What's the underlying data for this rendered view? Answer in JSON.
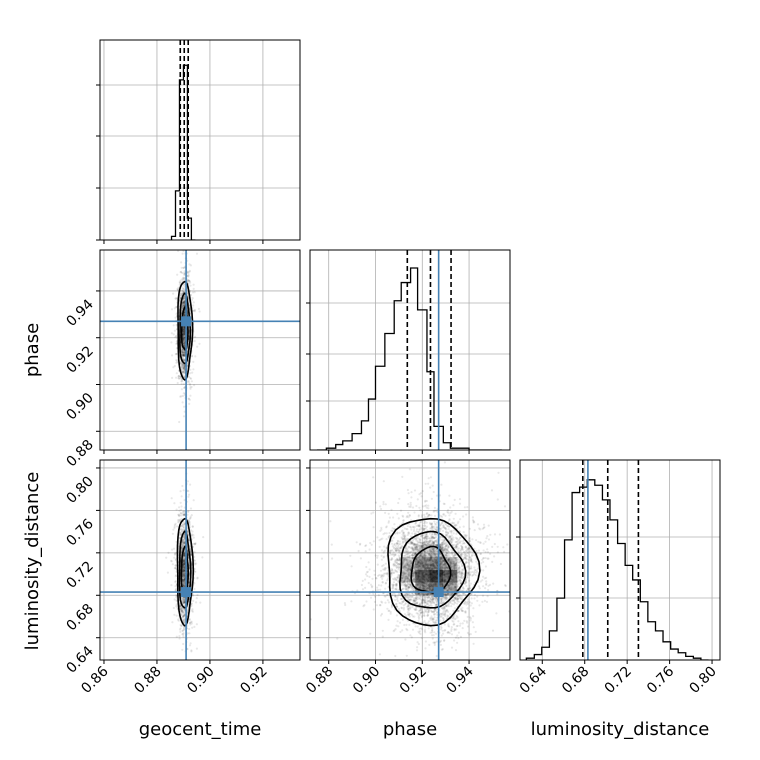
{
  "chart_data": {
    "type": "corner",
    "title": "",
    "grid": true,
    "truth_color": "#4682b4",
    "parameters": [
      "geocent_time",
      "phase",
      "luminosity_distance"
    ],
    "axis_labels": {
      "x_geocent_time": "geocent_time",
      "x_phase": "phase",
      "x_luminosity_distance": "luminosity_distance",
      "y_phase": "phase",
      "y_luminosity_distance": "luminosity_distance"
    },
    "truths": {
      "geocent_time": 0.891,
      "phase": 0.927,
      "luminosity_distance": 0.683
    },
    "ranges": {
      "geocent_time": [
        0.8585,
        0.934
      ],
      "phase": [
        0.872,
        0.9575
      ],
      "luminosity_distance": [
        0.619,
        0.8075
      ]
    },
    "ticks": {
      "geocent_time": [
        "0.86",
        "0.88",
        "0.90",
        "0.92"
      ],
      "phase": [
        "0.88",
        "0.90",
        "0.92",
        "0.94"
      ],
      "luminosity_distance": [
        "0.64",
        "0.68",
        "0.72",
        "0.76",
        "0.80"
      ]
    },
    "tick_values": {
      "geocent_time": [
        0.86,
        0.88,
        0.9,
        0.92
      ],
      "phase": [
        0.88,
        0.9,
        0.92,
        0.94
      ],
      "luminosity_distance": [
        0.64,
        0.68,
        0.72,
        0.76,
        0.8
      ]
    },
    "quantiles": {
      "geocent_time": [
        0.8888,
        0.8903,
        0.8918
      ],
      "phase": [
        0.9136,
        0.9235,
        0.9323
      ],
      "luminosity_distance": [
        0.6782,
        0.7017,
        0.7306
      ]
    },
    "histograms": {
      "geocent_time": {
        "edges": [
          0.8855,
          0.887,
          0.8885,
          0.89,
          0.8915,
          0.893,
          0.8945
        ],
        "counts": [
          0.02,
          0.27,
          0.88,
          0.96,
          0.12,
          0.0
        ]
      },
      "phase": {
        "edges": [
          0.875,
          0.879,
          0.883,
          0.886,
          0.89,
          0.894,
          0.897,
          0.9,
          0.904,
          0.908,
          0.911,
          0.915,
          0.918,
          0.922,
          0.925,
          0.929,
          0.932,
          0.936,
          0.94,
          0.943,
          0.947,
          0.95,
          0.954
        ],
        "counts": [
          0.0,
          0.01,
          0.03,
          0.05,
          0.09,
          0.16,
          0.28,
          0.46,
          0.64,
          0.82,
          0.92,
          1.0,
          0.77,
          0.43,
          0.13,
          0.04,
          0.01,
          0.01,
          0.0,
          0.0,
          0.0,
          0.0
        ]
      },
      "luminosity_distance": {
        "edges": [
          0.625,
          0.6325,
          0.6395,
          0.6467,
          0.6538,
          0.661,
          0.6681,
          0.6752,
          0.6824,
          0.6895,
          0.6967,
          0.7038,
          0.711,
          0.7181,
          0.7252,
          0.7324,
          0.7395,
          0.7467,
          0.7538,
          0.761,
          0.7681,
          0.7752,
          0.7824,
          0.7895,
          0.7967
        ],
        "counts": [
          0.01,
          0.03,
          0.07,
          0.16,
          0.34,
          0.66,
          0.92,
          0.95,
          0.99,
          0.96,
          0.88,
          0.77,
          0.64,
          0.52,
          0.44,
          0.32,
          0.21,
          0.16,
          0.1,
          0.06,
          0.04,
          0.02,
          0.01,
          0.0
        ]
      }
    },
    "posterior_2d": {
      "geocent_time_vs_phase": {
        "mean": [
          0.8905,
          0.9235
        ],
        "std": [
          0.0013,
          0.01
        ]
      },
      "geocent_time_vs_luminosity_distance": {
        "mean": [
          0.8905,
          0.703
        ],
        "std": [
          0.0014,
          0.024
        ]
      },
      "phase_vs_luminosity_distance": {
        "mean": [
          0.9235,
          0.703
        ],
        "std": [
          0.0092,
          0.024
        ]
      }
    }
  }
}
